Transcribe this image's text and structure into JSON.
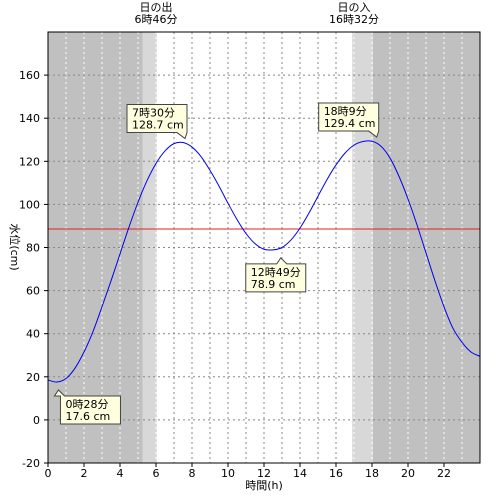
{
  "chart_data": {
    "type": "line",
    "xlabel": "時間(h)",
    "ylabel": "水位(cm)",
    "xlim": [
      0,
      24
    ],
    "ylim": [
      -20,
      180
    ],
    "x_ticks": [
      "0",
      "2",
      "4",
      "6",
      "8",
      "10",
      "12",
      "14",
      "16",
      "18",
      "20",
      "22"
    ],
    "y_ticks": [
      "-20",
      "0",
      "20",
      "40",
      "60",
      "80",
      "100",
      "120",
      "140",
      "160"
    ],
    "grid": true,
    "series": [
      {
        "color": "#0000ee",
        "x": [
          0,
          0.5,
          1,
          1.5,
          2,
          2.5,
          3,
          3.5,
          4,
          4.5,
          5,
          5.5,
          6,
          6.5,
          7,
          7.5,
          8,
          8.5,
          9,
          9.5,
          10,
          10.5,
          11,
          11.5,
          12,
          12.5,
          13,
          13.5,
          14,
          14.5,
          15,
          15.5,
          16,
          16.5,
          17,
          17.5,
          18,
          18.5,
          19,
          19.5,
          20,
          20.5,
          21,
          21.5,
          22,
          22.5,
          23,
          23.5,
          24
        ],
        "values": [
          18.5,
          17.6,
          19.2,
          24.0,
          31.5,
          41.0,
          52.5,
          64.5,
          77.0,
          89.5,
          101.0,
          111.0,
          119.0,
          124.8,
          128.2,
          128.7,
          126.6,
          122.2,
          115.8,
          108.5,
          100.5,
          93.0,
          86.5,
          81.8,
          79.2,
          78.9,
          80.0,
          83.5,
          89.0,
          96.0,
          103.8,
          111.5,
          118.3,
          123.8,
          127.5,
          129.2,
          129.3,
          127.0,
          121.5,
          113.0,
          102.5,
          90.5,
          77.5,
          64.5,
          52.5,
          42.5,
          36.0,
          31.5,
          29.5
        ]
      }
    ],
    "reference_line": {
      "y": 88.6,
      "color": "#e02020"
    },
    "shading": {
      "night_color": "#c0c0c0",
      "twilight_color": "#d8d8d8",
      "day_color": "#ffffff",
      "night_before": [
        0,
        5.25
      ],
      "twilight_morning": [
        5.25,
        6.05
      ],
      "day": [
        6.05,
        16.9
      ],
      "twilight_evening": [
        16.9,
        18.05
      ],
      "night_after": [
        18.05,
        24
      ]
    },
    "sun": [
      {
        "label": "日の出",
        "time": "6時46分",
        "x": 6.0
      },
      {
        "label": "日の入",
        "time": "16時32分",
        "x": 17.0
      }
    ],
    "annotations": [
      {
        "time": "0時28分",
        "value": "17.6 cm",
        "x": 0.47,
        "y": 17.6,
        "kind": "low"
      },
      {
        "time": "7時30分",
        "value": "128.7 cm",
        "x": 7.5,
        "y": 128.7,
        "kind": "high"
      },
      {
        "time": "12時49分",
        "value": "78.9 cm",
        "x": 12.82,
        "y": 78.9,
        "kind": "low"
      },
      {
        "time": "18時9分",
        "value": "129.4 cm",
        "x": 18.15,
        "y": 129.4,
        "kind": "high"
      }
    ]
  }
}
